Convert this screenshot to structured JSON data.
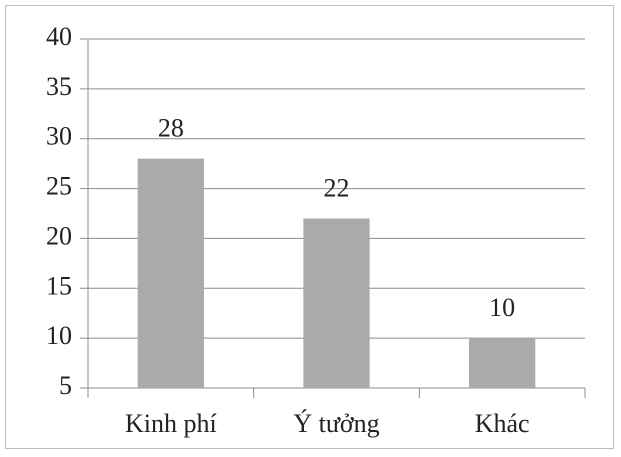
{
  "chart_data": {
    "type": "bar",
    "categories": [
      "Kinh phí",
      "Ý tưởng",
      "Khác"
    ],
    "values": [
      28,
      22,
      10
    ],
    "color": "#a9aaac",
    "ylim": [
      5,
      40
    ],
    "yticks": [
      5,
      10,
      15,
      20,
      25,
      30,
      35,
      40
    ],
    "grid": true
  }
}
